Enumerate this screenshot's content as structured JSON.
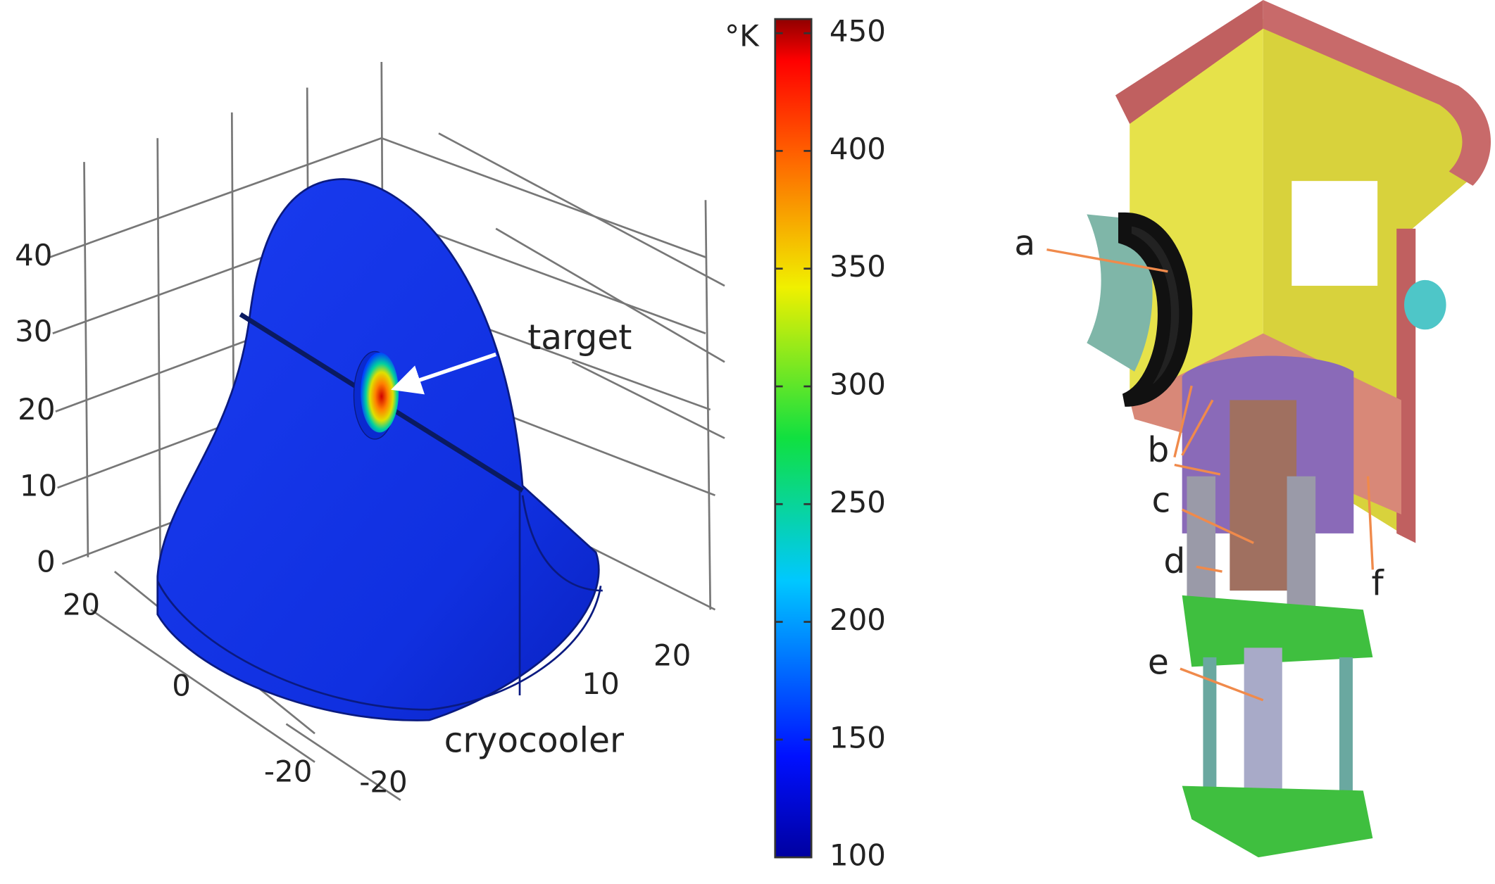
{
  "simulation": {
    "z_ticks": [
      "40",
      "30",
      "20",
      "10",
      "0"
    ],
    "x_ticks": [
      "20",
      "0",
      "-20"
    ],
    "y_ticks": [
      "-20",
      "10",
      "20"
    ],
    "annotations": {
      "target": "target",
      "cryocooler": "cryocooler"
    }
  },
  "colorbar": {
    "unit": "°K",
    "limits": [
      100,
      456
    ],
    "ticks": [
      100,
      150,
      200,
      250,
      300,
      350,
      400,
      450
    ]
  },
  "assembly": {
    "labels": [
      "a",
      "b",
      "c",
      "d",
      "e",
      "f"
    ]
  }
}
